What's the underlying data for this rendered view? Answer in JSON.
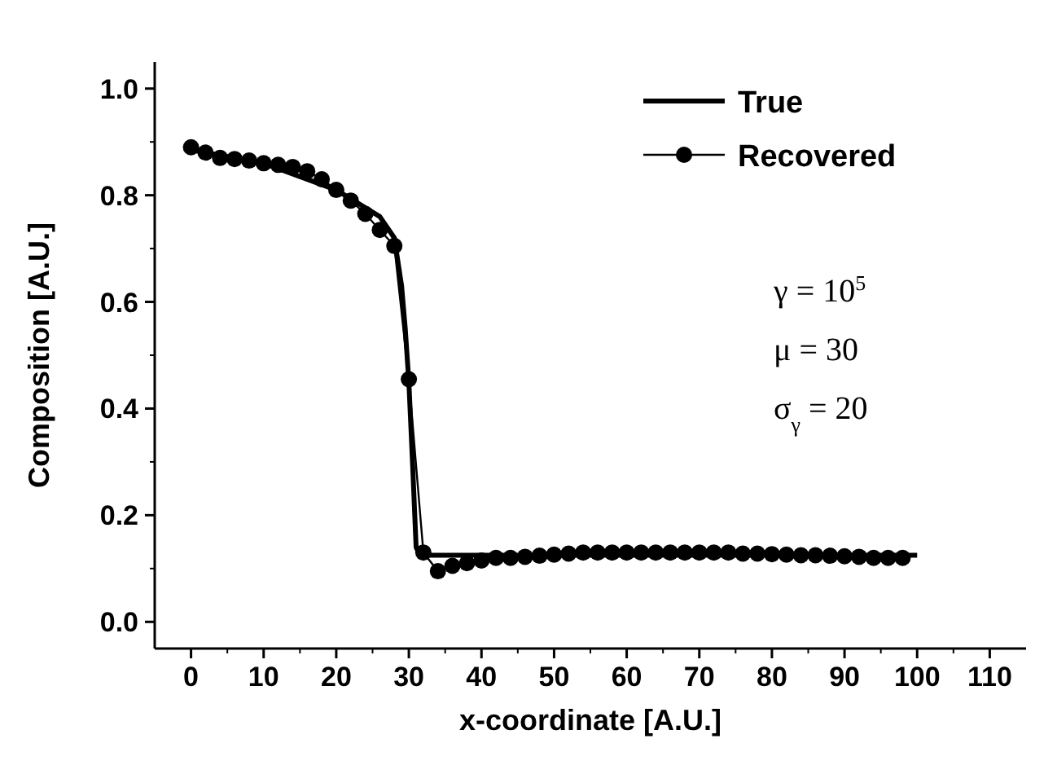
{
  "chart_data": {
    "type": "line",
    "xlabel": "x-coordinate [A.U.]",
    "ylabel": "Composition [A.U.]",
    "xlim": [
      -5,
      115
    ],
    "ylim": [
      -0.05,
      1.05
    ],
    "xticks": [
      0,
      10,
      20,
      30,
      40,
      50,
      60,
      70,
      80,
      90,
      100,
      110
    ],
    "yticks": [
      {
        "value": 0,
        "label": "0.0"
      },
      {
        "value": 0.2,
        "label": "0.2"
      },
      {
        "value": 0.4,
        "label": "0.4"
      },
      {
        "value": 0.6,
        "label": "0.6"
      },
      {
        "value": 0.8,
        "label": "0.8"
      },
      {
        "value": 1,
        "label": "1.0"
      }
    ],
    "legend": "top right",
    "grid": false,
    "annotations": [
      "γ = 10$^{5}$",
      "μ = 30",
      "σ$_{γ}$ = 20"
    ],
    "series": [
      {
        "name": "True",
        "color": "#000000",
        "marker": "none",
        "x": [
          0,
          10,
          20,
          26,
          28,
          29,
          29.5,
          30,
          30.5,
          31,
          31.5,
          100
        ],
        "values": [
          0.885,
          0.86,
          0.81,
          0.76,
          0.72,
          0.63,
          0.55,
          0.45,
          0.3,
          0.14,
          0.125,
          0.125
        ]
      },
      {
        "name": "Recovered",
        "color": "#000000",
        "marker": "circle",
        "x": [
          0,
          2,
          4,
          6,
          8,
          10,
          12,
          14,
          16,
          18,
          20,
          22,
          24,
          26,
          28,
          30,
          32,
          34,
          36,
          38,
          40,
          42,
          44,
          46,
          48,
          50,
          52,
          54,
          56,
          58,
          60,
          62,
          64,
          66,
          68,
          70,
          72,
          74,
          76,
          78,
          80,
          82,
          84,
          86,
          88,
          90,
          92,
          94,
          96,
          98
        ],
        "values": [
          0.89,
          0.88,
          0.87,
          0.868,
          0.865,
          0.86,
          0.857,
          0.853,
          0.845,
          0.83,
          0.81,
          0.79,
          0.765,
          0.735,
          0.705,
          0.455,
          0.13,
          0.095,
          0.105,
          0.11,
          0.115,
          0.12,
          0.12,
          0.122,
          0.124,
          0.126,
          0.128,
          0.13,
          0.13,
          0.13,
          0.13,
          0.13,
          0.13,
          0.13,
          0.13,
          0.13,
          0.13,
          0.13,
          0.128,
          0.128,
          0.127,
          0.126,
          0.125,
          0.125,
          0.124,
          0.123,
          0.122,
          0.12,
          0.12,
          0.12
        ]
      }
    ]
  }
}
